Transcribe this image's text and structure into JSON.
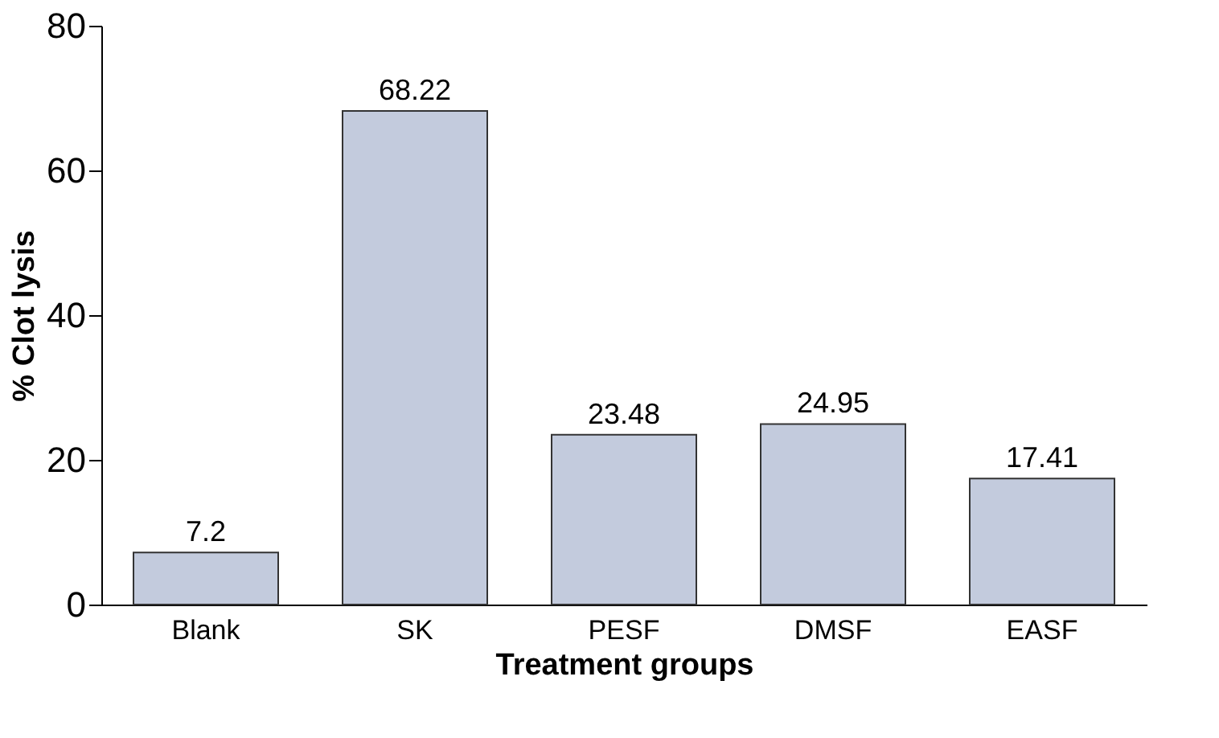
{
  "chart_data": {
    "type": "bar",
    "xlabel": "Treatment groups",
    "ylabel": "% Clot lysis",
    "categories": [
      "Blank",
      "SK",
      "PESF",
      "DMSF",
      "EASF"
    ],
    "values": [
      7.2,
      68.22,
      23.48,
      24.95,
      17.41
    ],
    "color": "#c3cbdd",
    "ylim": [
      0,
      80
    ],
    "yticks": [
      0,
      20,
      40,
      60,
      80
    ],
    "grid": false,
    "data_labels": true
  }
}
